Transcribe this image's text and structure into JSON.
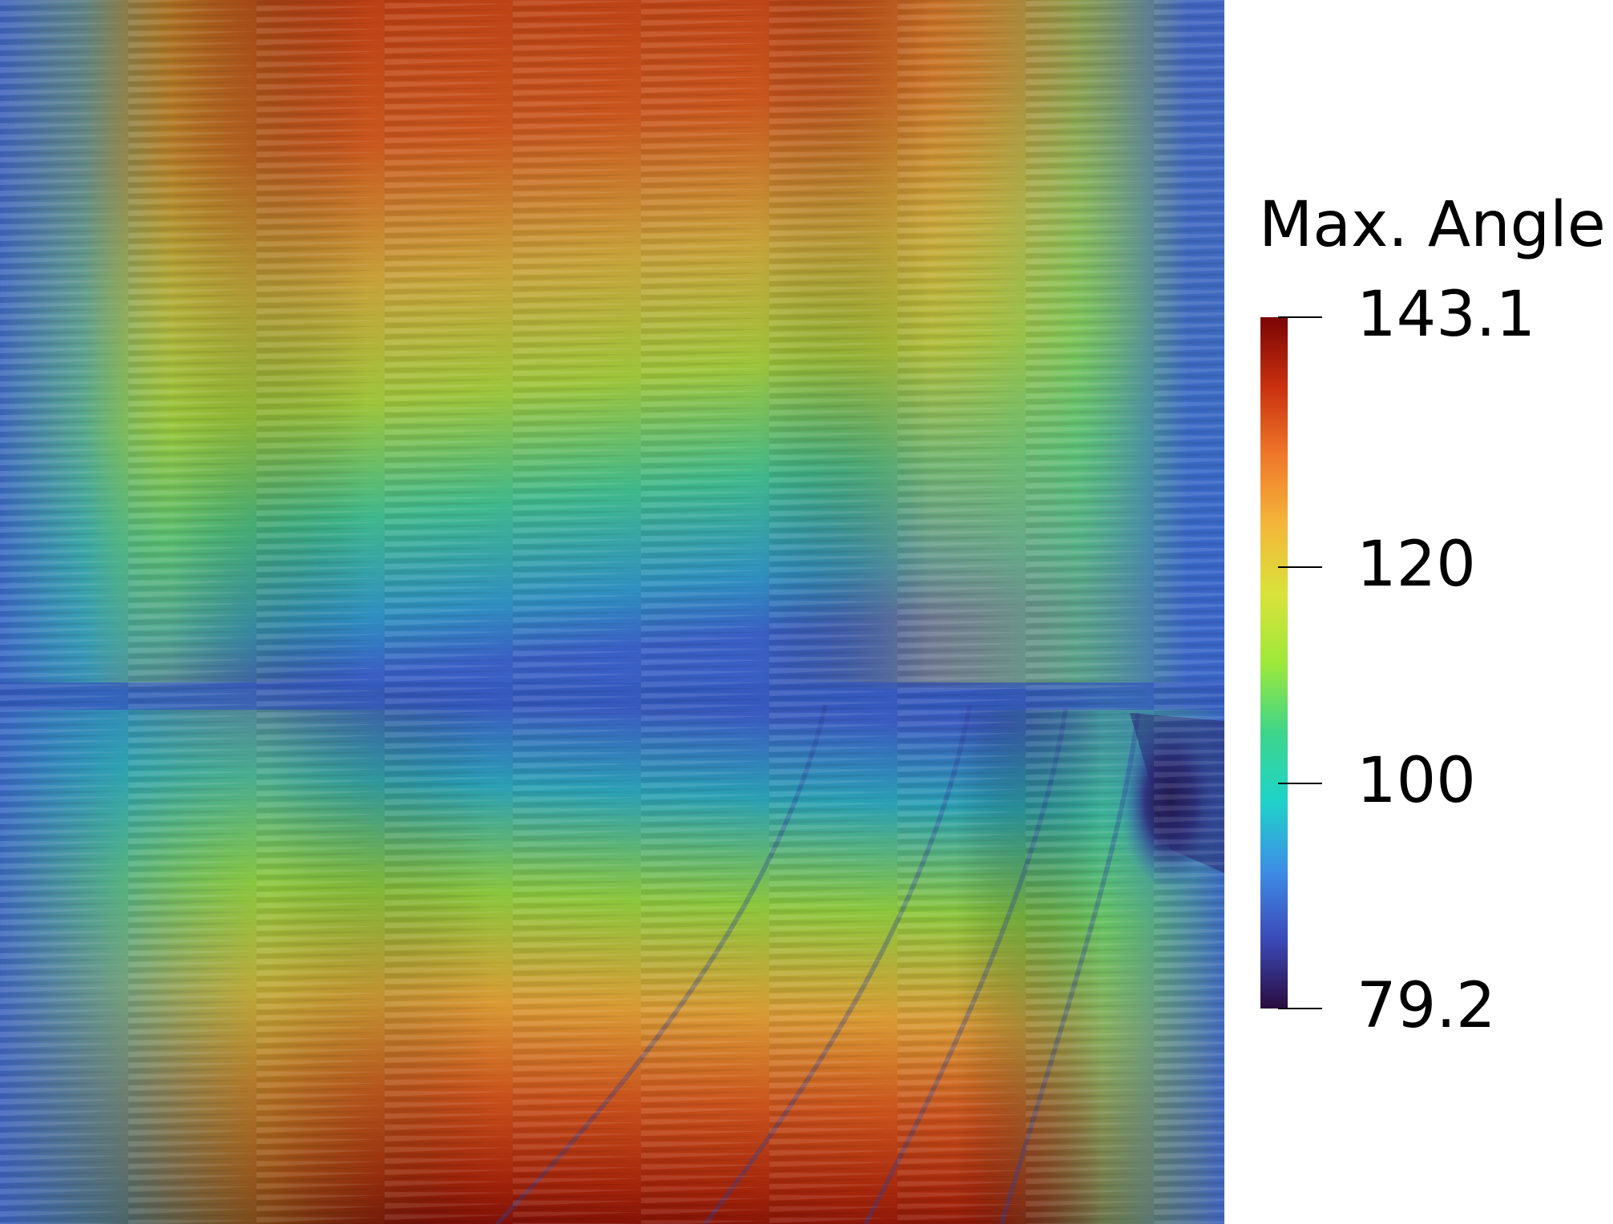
{
  "legend": {
    "title": "Max. Angle",
    "range": [
      79.2,
      143.1
    ],
    "ticks": [
      {
        "value": 143.1,
        "label": "143.1"
      },
      {
        "value": 120,
        "label": "120"
      },
      {
        "value": 100,
        "label": "100"
      },
      {
        "value": 79.2,
        "label": "79.2"
      }
    ],
    "colormap": [
      "#2a0c3f",
      "#3b4ab8",
      "#3d8ee6",
      "#1fd3c9",
      "#3ed58a",
      "#9ee83a",
      "#d9e23a",
      "#f4b63a",
      "#f0782a",
      "#c9300e",
      "#7a0405"
    ]
  },
  "field": {
    "background_color": "#3a66c8",
    "band_colors": {
      "blue": "#3a66c8",
      "teal": "#20b8a8",
      "green": "#8fca3a",
      "yellow": "#d4b23a",
      "orange": "#d06a28",
      "red": "#a82e0c",
      "dark_red": "#7a0a06",
      "dark_purple": "#2a1040"
    }
  }
}
